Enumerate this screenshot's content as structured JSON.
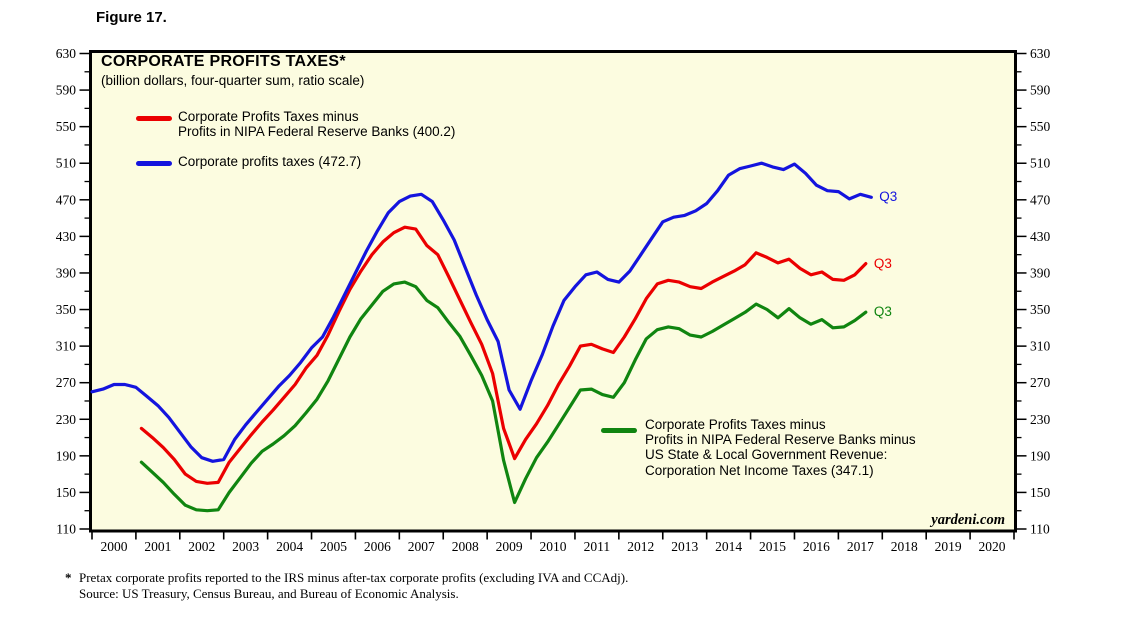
{
  "figure_label": "Figure 17.",
  "credit": "yardeni.com",
  "footnote": {
    "marker": "*",
    "lines": [
      "Pretax corporate profits reported to the IRS minus after-tax corporate profits (excluding IVA and CCAdj).",
      "Source: US Treasury, Census Bureau, and Bureau of Economic Analysis."
    ]
  },
  "colors": {
    "plot_background": "#FCFCE0",
    "frame": "#000000",
    "red_series": "#EB0000",
    "blue_series": "#1414DE",
    "green_series": "#108510"
  },
  "chart_data": {
    "type": "line",
    "title": "CORPORATE PROFITS TAXES*",
    "subtitle": "(billion dollars, four-quarter sum, ratio scale)",
    "grid": "off",
    "y_axis": {
      "range": [
        110,
        630
      ],
      "major_ticks": [
        630,
        590,
        550,
        510,
        470,
        430,
        390,
        350,
        310,
        270,
        230,
        190,
        150,
        110
      ],
      "minor_tick_step": 20,
      "label_sides": "both",
      "scale_label": "ratio scale"
    },
    "x_axis": {
      "range": [
        2000,
        2021
      ],
      "year_labels": [
        2000,
        2001,
        2002,
        2003,
        2004,
        2005,
        2006,
        2007,
        2008,
        2009,
        2010,
        2011,
        2012,
        2013,
        2014,
        2015,
        2016,
        2017,
        2018,
        2019,
        2020
      ],
      "frequency": "quarterly"
    },
    "series": [
      {
        "id": "red",
        "name": "Corporate Profits Taxes minus Profits in NIPA Federal Reserve Banks",
        "legend_lines": [
          "Corporate Profits Taxes minus",
          "Profits in NIPA Federal Reserve Banks (400.2)"
        ],
        "color": "#EB0000",
        "start_t": 2001.125,
        "step": 0.25,
        "end_label": "Q3",
        "last_value": 400.2,
        "values": [
          220,
          210,
          199,
          186,
          170,
          162,
          160,
          161,
          183,
          198,
          213,
          227,
          240,
          254,
          268,
          286,
          300,
          322,
          348,
          372,
          392,
          410,
          424,
          434,
          440,
          438,
          420,
          410,
          386,
          361,
          336,
          312,
          280,
          220,
          187,
          208,
          225,
          245,
          268,
          288,
          310,
          312,
          307,
          303,
          320,
          340,
          362,
          378,
          382,
          380,
          375,
          373,
          380,
          386,
          392,
          399,
          412,
          407,
          401,
          405,
          395,
          388,
          391,
          383,
          382,
          388,
          400.2
        ]
      },
      {
        "id": "blue",
        "name": "Corporate profits taxes",
        "legend_lines": [
          "Corporate profits taxes (472.7)"
        ],
        "color": "#1414DE",
        "start_t": 2000.0,
        "step": 0.25,
        "end_label": "Q3",
        "last_value": 472.7,
        "values": [
          260,
          263,
          268,
          268,
          265,
          255,
          245,
          232,
          216,
          200,
          188,
          184,
          186,
          208,
          224,
          238,
          252,
          266,
          278,
          292,
          308,
          320,
          342,
          366,
          390,
          414,
          436,
          456,
          468,
          474,
          476,
          468,
          448,
          426,
          396,
          366,
          339,
          315,
          262,
          241,
          272,
          300,
          332,
          360,
          375,
          388,
          391,
          383,
          380,
          392,
          410,
          428,
          446,
          451,
          453,
          458,
          466,
          480,
          497,
          504,
          507,
          510,
          506,
          503,
          509,
          499,
          486,
          480,
          479,
          471,
          476,
          472.7
        ]
      },
      {
        "id": "green",
        "name": "Corporate Profits Taxes minus Profits in NIPA Federal Reserve Banks minus US State & Local Government Revenue: Corporation Net Income Taxes",
        "legend_lines": [
          "Corporate Profits Taxes minus",
          "Profits in NIPA Federal Reserve Banks minus",
          "US State & Local Government Revenue:",
          "Corporation Net Income Taxes (347.1)"
        ],
        "color": "#108510",
        "start_t": 2001.125,
        "step": 0.25,
        "end_label": "Q3",
        "last_value": 347.1,
        "values": [
          183,
          172,
          161,
          148,
          136,
          131,
          130,
          131,
          150,
          166,
          182,
          195,
          203,
          212,
          223,
          237,
          252,
          272,
          296,
          320,
          340,
          355,
          370,
          378,
          380,
          375,
          360,
          352,
          336,
          321,
          300,
          278,
          250,
          185,
          139,
          165,
          188,
          205,
          224,
          243,
          262,
          263,
          257,
          254,
          270,
          295,
          318,
          328,
          331,
          329,
          322,
          320,
          326,
          333,
          340,
          347,
          356,
          350,
          341,
          351,
          341,
          334,
          339,
          330,
          331,
          338,
          347.1
        ]
      }
    ]
  }
}
